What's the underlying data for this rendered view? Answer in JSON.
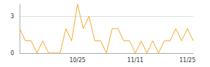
{
  "chart_data": {
    "type": "line",
    "categories": [
      null,
      null,
      null,
      null,
      null,
      null,
      null,
      null,
      null,
      null,
      "10/25",
      null,
      null,
      null,
      null,
      null,
      null,
      null,
      null,
      null,
      "11/11",
      null,
      null,
      null,
      null,
      null,
      null,
      null,
      null,
      "11/25",
      null
    ],
    "values": [
      2,
      1,
      1,
      0,
      1,
      0,
      0,
      0,
      2,
      1,
      4,
      2,
      3,
      1,
      1,
      0,
      2,
      2,
      1,
      1,
      0,
      1,
      0,
      1,
      0,
      1,
      1,
      2,
      1,
      2,
      1
    ],
    "color": "#f5a623",
    "ylim": [
      0,
      4
    ],
    "yticks": [
      0,
      3
    ],
    "grid": true
  }
}
